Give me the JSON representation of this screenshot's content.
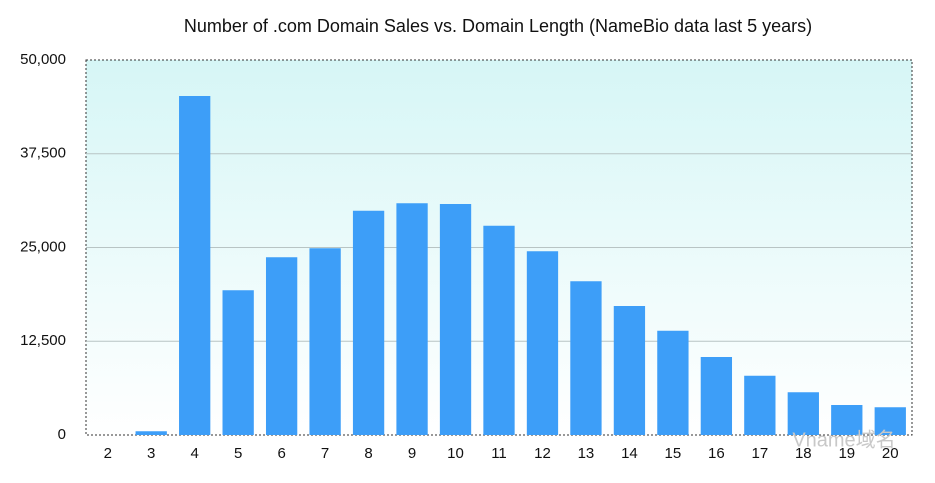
{
  "chart_data": {
    "type": "bar",
    "title": "Number of .com Domain Sales vs. Domain Length (NameBio data last 5 years)",
    "categories": [
      "2",
      "3",
      "4",
      "5",
      "6",
      "7",
      "8",
      "9",
      "10",
      "11",
      "12",
      "13",
      "14",
      "15",
      "16",
      "17",
      "18",
      "19",
      "20"
    ],
    "values": [
      0,
      500,
      45200,
      19300,
      23700,
      24900,
      29900,
      30900,
      30800,
      27900,
      24500,
      20500,
      17200,
      13900,
      10400,
      7900,
      5700,
      4000,
      3700
    ],
    "color": "#3d9ef8",
    "ylim": [
      0,
      50000
    ],
    "yticks": [
      0,
      {
        "value": 12500,
        "label": "12,500"
      },
      {
        "value": 25000,
        "label": "25,000"
      },
      {
        "value": 37500,
        "label": "37,500"
      },
      {
        "value": 50000,
        "label": "50,000"
      }
    ],
    "grid": true
  },
  "watermark": "Vname域名"
}
